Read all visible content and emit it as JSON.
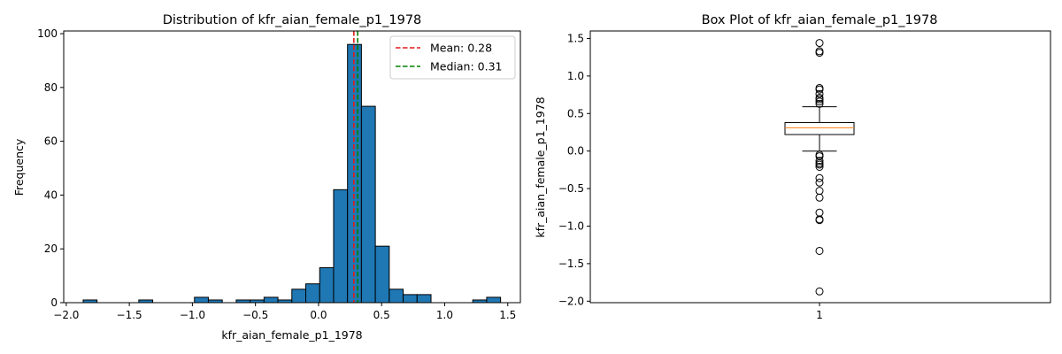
{
  "chart_data": [
    {
      "type": "bar",
      "title": "Distribution of kfr_aian_female_p1_1978",
      "xlabel": "kfr_aian_female_p1_1978",
      "ylabel": "Frequency",
      "xlim": [
        -2.02,
        1.6
      ],
      "ylim": [
        0,
        101
      ],
      "bins": {
        "start": -1.866,
        "width": 0.1103,
        "counts": [
          1,
          0,
          0,
          0,
          1,
          0,
          0,
          0,
          2,
          1,
          0,
          1,
          1,
          2,
          1,
          5,
          7,
          13,
          42,
          96,
          73,
          21,
          5,
          3,
          3,
          0,
          0,
          0,
          1,
          2
        ]
      },
      "x_ticks": [
        {
          "value": -2.0,
          "label": "−2.0"
        },
        {
          "value": -1.5,
          "label": "−1.5"
        },
        {
          "value": -1.0,
          "label": "−1.0"
        },
        {
          "value": -0.5,
          "label": "−0.5"
        },
        {
          "value": 0.0,
          "label": "0.0"
        },
        {
          "value": 0.5,
          "label": "0.5"
        },
        {
          "value": 1.0,
          "label": "1.0"
        },
        {
          "value": 1.5,
          "label": "1.5"
        }
      ],
      "y_ticks": [
        {
          "value": 0,
          "label": "0"
        },
        {
          "value": 20,
          "label": "20"
        },
        {
          "value": 40,
          "label": "40"
        },
        {
          "value": 60,
          "label": "60"
        },
        {
          "value": 80,
          "label": "80"
        },
        {
          "value": 100,
          "label": "100"
        }
      ],
      "mean_line": {
        "value": 0.28,
        "label": "Mean: 0.28",
        "color": "#e41a1c"
      },
      "median_line": {
        "value": 0.31,
        "label": "Median: 0.31",
        "color": "#008000"
      },
      "bar_color": "#1f77b4",
      "legend": "top-right"
    },
    {
      "type": "box",
      "title": "Box Plot of kfr_aian_female_p1_1978",
      "ylabel": "kfr_aian_female_p1_1978",
      "xlabel": "",
      "ylim": [
        -2.02,
        1.6
      ],
      "category_label": "1",
      "q1": 0.22,
      "median": 0.31,
      "q3": 0.38,
      "whisker_low": 0.0,
      "whisker_high": 0.59,
      "outliers": [
        1.44,
        1.33,
        1.31,
        0.84,
        0.82,
        0.76,
        0.71,
        0.69,
        0.66,
        0.63,
        -0.05,
        -0.07,
        -0.13,
        -0.16,
        -0.18,
        -0.21,
        -0.36,
        -0.42,
        -0.53,
        -0.62,
        -0.82,
        -0.91,
        -0.92,
        -1.33,
        -1.87
      ],
      "median_color": "#ff7f0e",
      "y_ticks": [
        {
          "value": 1.5,
          "label": "1.5"
        },
        {
          "value": 1.0,
          "label": "1.0"
        },
        {
          "value": 0.5,
          "label": "0.5"
        },
        {
          "value": 0.0,
          "label": "0.0"
        },
        {
          "value": -0.5,
          "label": "−0.5"
        },
        {
          "value": -1.0,
          "label": "−1.0"
        },
        {
          "value": -1.5,
          "label": "−1.5"
        },
        {
          "value": -2.0,
          "label": "−2.0"
        }
      ]
    }
  ]
}
